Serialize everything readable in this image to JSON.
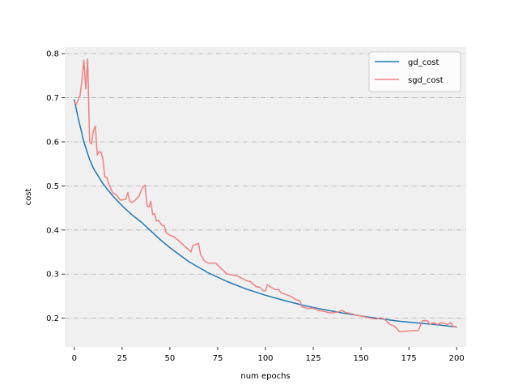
{
  "chart_data": {
    "type": "line",
    "title": "",
    "xlabel": "num epochs",
    "ylabel": "cost",
    "xlim": [
      -5,
      205
    ],
    "ylim": [
      0.135,
      0.815
    ],
    "x_ticks": [
      0,
      25,
      50,
      75,
      100,
      125,
      150,
      175,
      200
    ],
    "x_tick_labels": [
      "0",
      "25",
      "50",
      "75",
      "100",
      "125",
      "150",
      "175",
      "200"
    ],
    "y_ticks": [
      0.2,
      0.3,
      0.4,
      0.5,
      0.6,
      0.7,
      0.8
    ],
    "y_tick_labels": [
      "0.2",
      "0.3",
      "0.4",
      "0.5",
      "0.6",
      "0.7",
      "0.8"
    ],
    "grid": "horizontal dash-dot",
    "legend_position": "top-right",
    "background": "#f0f0f0",
    "series": [
      {
        "name": "gd_cost",
        "color": "#1f77b4",
        "x": [
          0,
          2,
          5,
          8,
          10,
          15,
          20,
          25,
          30,
          35,
          40,
          45,
          50,
          60,
          70,
          80,
          90,
          100,
          110,
          120,
          130,
          140,
          150,
          160,
          170,
          180,
          190,
          200
        ],
        "y": [
          0.695,
          0.655,
          0.6,
          0.56,
          0.54,
          0.505,
          0.478,
          0.455,
          0.435,
          0.418,
          0.398,
          0.378,
          0.36,
          0.328,
          0.303,
          0.283,
          0.266,
          0.252,
          0.24,
          0.229,
          0.22,
          0.212,
          0.205,
          0.199,
          0.193,
          0.189,
          0.185,
          0.18
        ]
      },
      {
        "name": "sgd_cost",
        "color": "#f08080",
        "x": [
          0,
          1,
          2,
          3,
          4,
          5,
          6,
          7,
          8,
          9,
          10,
          11,
          12,
          13,
          14,
          15,
          16,
          17,
          18,
          20,
          22,
          24,
          25,
          27,
          28,
          29,
          30,
          32,
          34,
          35,
          36,
          37,
          38,
          39,
          40,
          41,
          42,
          43,
          44,
          46,
          47,
          48,
          50,
          52,
          54,
          56,
          58,
          60,
          61,
          62,
          64,
          65,
          66,
          68,
          70,
          74,
          75,
          78,
          80,
          85,
          88,
          90,
          92,
          95,
          97,
          99,
          100,
          101,
          103,
          105,
          107,
          108,
          110,
          113,
          116,
          118,
          119,
          122,
          125,
          127,
          130,
          133,
          135,
          138,
          140,
          142,
          145,
          148,
          150,
          155,
          158,
          160,
          161,
          163,
          165,
          167,
          168,
          170,
          172,
          175,
          178,
          180,
          182,
          184,
          185,
          186,
          188,
          190,
          192,
          195,
          197,
          198,
          200
        ],
        "y": [
          0.69,
          0.685,
          0.695,
          0.705,
          0.74,
          0.785,
          0.72,
          0.788,
          0.6,
          0.595,
          0.625,
          0.636,
          0.57,
          0.578,
          0.576,
          0.56,
          0.52,
          0.52,
          0.505,
          0.485,
          0.48,
          0.468,
          0.468,
          0.47,
          0.485,
          0.465,
          0.462,
          0.468,
          0.478,
          0.49,
          0.498,
          0.502,
          0.455,
          0.452,
          0.465,
          0.435,
          0.437,
          0.42,
          0.422,
          0.41,
          0.41,
          0.395,
          0.388,
          0.385,
          0.378,
          0.37,
          0.362,
          0.355,
          0.35,
          0.365,
          0.368,
          0.37,
          0.345,
          0.33,
          0.325,
          0.325,
          0.32,
          0.308,
          0.3,
          0.296,
          0.29,
          0.285,
          0.283,
          0.272,
          0.27,
          0.262,
          0.262,
          0.276,
          0.27,
          0.265,
          0.265,
          0.258,
          0.255,
          0.25,
          0.242,
          0.24,
          0.226,
          0.222,
          0.223,
          0.218,
          0.216,
          0.213,
          0.212,
          0.214,
          0.218,
          0.213,
          0.21,
          0.206,
          0.205,
          0.2,
          0.198,
          0.201,
          0.2,
          0.195,
          0.186,
          0.183,
          0.18,
          0.17,
          0.17,
          0.171,
          0.172,
          0.172,
          0.194,
          0.195,
          0.193,
          0.186,
          0.19,
          0.186,
          0.19,
          0.186,
          0.19,
          0.182,
          0.18
        ]
      }
    ]
  }
}
